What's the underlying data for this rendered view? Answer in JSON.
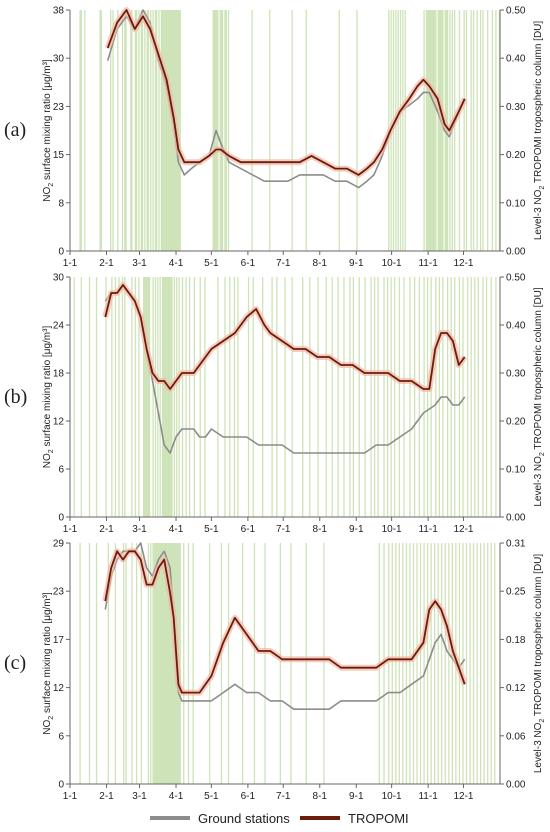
{
  "colors": {
    "ground": "#8c8c8c",
    "tropomi": "#6b1c0c",
    "tropomi_glow": "#f4b7a4",
    "rain_band": "#c9e0b0",
    "axis": "#666666"
  },
  "legend": {
    "ground_label": "Ground stations",
    "tropomi_label": "TROPOMI"
  },
  "chart_data": [
    {
      "type": "line",
      "panel_label": "(a)",
      "ylabel_left": "NO2 surface mixing ratio [μg/m³]",
      "ylabel_right": "Level-3 NO2 TROPOMI tropospheric column [DU]",
      "x_ticks": [
        "1-1",
        "2-1",
        "3-1",
        "4-1",
        "5-1",
        "6-1",
        "7-1",
        "8-1",
        "9-1",
        "10-1",
        "11-1",
        "12-1"
      ],
      "y_left_ticks": [
        "0",
        "8",
        "15",
        "23",
        "30",
        "38"
      ],
      "y_right_ticks": [
        "0.00",
        "0.10",
        "0.20",
        "0.30",
        "0.40",
        "0.50"
      ],
      "ylim_left": [
        0,
        38
      ],
      "xlim_days": [
        0,
        365
      ],
      "series": [
        {
          "name": "Ground stations",
          "x": [
            32,
            40,
            48,
            55,
            62,
            68,
            75,
            82,
            88,
            92,
            97,
            103,
            110,
            118,
            124,
            128,
            135,
            145,
            155,
            165,
            175,
            185,
            195,
            205,
            215,
            225,
            235,
            245,
            252,
            258,
            265,
            272,
            280,
            288,
            295,
            300,
            305,
            312,
            318,
            322,
            330,
            335
          ],
          "y": [
            30,
            35,
            37,
            35,
            38,
            36,
            30,
            26,
            20,
            14,
            12,
            13,
            14,
            15,
            19,
            17,
            14,
            13,
            12,
            11,
            11,
            11,
            12,
            12,
            12,
            11,
            11,
            10,
            11,
            12,
            15,
            19,
            22,
            23,
            24,
            25,
            25,
            22,
            19,
            18,
            22,
            24
          ]
        },
        {
          "name": "TROPOMI",
          "x": [
            32,
            40,
            48,
            55,
            62,
            68,
            75,
            82,
            88,
            92,
            97,
            103,
            110,
            118,
            124,
            128,
            135,
            145,
            155,
            165,
            175,
            185,
            195,
            205,
            215,
            225,
            235,
            245,
            252,
            258,
            265,
            272,
            280,
            288,
            295,
            300,
            305,
            312,
            318,
            322,
            330,
            335
          ],
          "y": [
            32,
            36,
            38,
            35,
            37,
            35,
            31,
            27,
            21,
            16,
            14,
            14,
            14,
            15,
            16,
            16,
            15,
            14,
            14,
            14,
            14,
            14,
            14,
            15,
            14,
            13,
            13,
            12,
            13,
            14,
            16,
            19,
            22,
            24,
            26,
            27,
            26,
            24,
            20,
            19,
            22,
            24
          ]
        }
      ],
      "rain_days": [
        8,
        9,
        12,
        25,
        26,
        34,
        36,
        40,
        44,
        46,
        47,
        51,
        52,
        55,
        56,
        58,
        60,
        61,
        63,
        65,
        66,
        68,
        70,
        72,
        73,
        75,
        77,
        78,
        79,
        80,
        81,
        82,
        83,
        84,
        85,
        86,
        87,
        88,
        89,
        90,
        91,
        92,
        93,
        121,
        122,
        123,
        124,
        125,
        127,
        128,
        129,
        131,
        132,
        134,
        154,
        169,
        188,
        200,
        228,
        243,
        270,
        272,
        274,
        276,
        278,
        280,
        282,
        284,
        300,
        302,
        303,
        304,
        305,
        306,
        307,
        308,
        309,
        310,
        312,
        313,
        314,
        315,
        316,
        318,
        319,
        320,
        322,
        324,
        326,
        330,
        334,
        336,
        340,
        342,
        345,
        348,
        350,
        354,
        358,
        361,
        364
      ]
    },
    {
      "type": "line",
      "panel_label": "(b)",
      "ylabel_left": "NO2 surface mixing ratio [μg/m³]",
      "ylabel_right": "Level-3 NO2 TROPOMI tropospheric column [DU]",
      "x_ticks": [
        "1-1",
        "2-1",
        "3-1",
        "4-1",
        "5-1",
        "6-1",
        "7-1",
        "8-1",
        "9-1",
        "10-1",
        "11-1",
        "12-1"
      ],
      "y_left_ticks": [
        "0",
        "6",
        "12",
        "18",
        "24",
        "30"
      ],
      "y_right_ticks": [
        "0.00",
        "0.10",
        "0.20",
        "0.30",
        "0.40",
        "0.50"
      ],
      "ylim_left": [
        0,
        30
      ],
      "xlim_days": [
        0,
        365
      ],
      "series": [
        {
          "name": "Ground stations",
          "x": [
            30,
            35,
            40,
            45,
            50,
            55,
            60,
            65,
            70,
            75,
            80,
            85,
            90,
            95,
            100,
            105,
            110,
            115,
            120,
            130,
            140,
            150,
            160,
            170,
            180,
            190,
            200,
            210,
            220,
            230,
            240,
            250,
            260,
            270,
            280,
            290,
            300,
            310,
            315,
            320,
            325,
            330,
            335
          ],
          "y": [
            27,
            28,
            28,
            29,
            28,
            27,
            25,
            21,
            17,
            13,
            9,
            8,
            10,
            11,
            11,
            11,
            10,
            10,
            11,
            10,
            10,
            10,
            9,
            9,
            9,
            8,
            8,
            8,
            8,
            8,
            8,
            8,
            9,
            9,
            10,
            11,
            13,
            14,
            15,
            15,
            14,
            14,
            15
          ]
        },
        {
          "name": "TROPOMI",
          "x": [
            30,
            35,
            40,
            45,
            50,
            55,
            60,
            65,
            70,
            75,
            80,
            85,
            90,
            95,
            100,
            105,
            110,
            115,
            120,
            130,
            140,
            150,
            158,
            165,
            170,
            180,
            190,
            200,
            210,
            220,
            230,
            240,
            250,
            260,
            270,
            280,
            290,
            300,
            305,
            310,
            315,
            320,
            325,
            330,
            335
          ],
          "y": [
            25,
            28,
            28,
            29,
            28,
            27,
            25,
            21,
            18,
            17,
            17,
            16,
            17,
            18,
            18,
            18,
            19,
            20,
            21,
            22,
            23,
            25,
            26,
            24,
            23,
            22,
            21,
            21,
            20,
            20,
            19,
            19,
            18,
            18,
            18,
            17,
            17,
            16,
            16,
            21,
            23,
            23,
            22,
            19,
            20
          ]
        }
      ],
      "rain_days": [
        3,
        9,
        16,
        22,
        30,
        35,
        38,
        41,
        44,
        46,
        52,
        55,
        58,
        62,
        63,
        64,
        65,
        66,
        67,
        70,
        72,
        74,
        76,
        78,
        79,
        80,
        81,
        82,
        83,
        84,
        85,
        86,
        88,
        90,
        92,
        95,
        98,
        101,
        105,
        110,
        114,
        125,
        131,
        135,
        139,
        142,
        151,
        155,
        163,
        171,
        175,
        182,
        188,
        197,
        203,
        210,
        217,
        222,
        227,
        232,
        237,
        240,
        245,
        250,
        255,
        258,
        261,
        266,
        269,
        272,
        275,
        279,
        283,
        288,
        292,
        296,
        300,
        303,
        306,
        310,
        313,
        316,
        320,
        323,
        326,
        330,
        333,
        337,
        340,
        343,
        346,
        350,
        353,
        357,
        361
      ]
    },
    {
      "type": "line",
      "panel_label": "(c)",
      "ylabel_left": "NO2 surface mixing ratio [μg/m³]",
      "ylabel_right": "Level-3 NO2 TROPOMI tropospheric column [DU]",
      "x_ticks": [
        "1-1",
        "2-1",
        "3-1",
        "4-1",
        "5-1",
        "6-1",
        "7-1",
        "8-1",
        "9-1",
        "10-1",
        "11-1",
        "12-1"
      ],
      "y_left_ticks": [
        "0",
        "6",
        "12",
        "17",
        "23",
        "29"
      ],
      "y_right_ticks": [
        "0.00",
        "0.06",
        "0.12",
        "0.18",
        "0.25",
        "0.31"
      ],
      "ylim_left": [
        0,
        29
      ],
      "xlim_days": [
        0,
        365
      ],
      "series": [
        {
          "name": "Ground stations",
          "x": [
            30,
            35,
            40,
            45,
            50,
            55,
            60,
            65,
            70,
            75,
            80,
            85,
            88,
            90,
            92,
            95,
            100,
            110,
            120,
            130,
            140,
            150,
            160,
            170,
            180,
            190,
            200,
            210,
            220,
            230,
            240,
            250,
            260,
            270,
            280,
            290,
            300,
            305,
            310,
            315,
            320,
            325,
            330,
            335
          ],
          "y": [
            21,
            25,
            27,
            28,
            28,
            28,
            29,
            26,
            25,
            27,
            28,
            26,
            20,
            15,
            11,
            10,
            10,
            10,
            10,
            11,
            12,
            11,
            11,
            10,
            10,
            9,
            9,
            9,
            9,
            10,
            10,
            10,
            10,
            11,
            11,
            12,
            13,
            15,
            17,
            18,
            16,
            15,
            14,
            15
          ]
        },
        {
          "name": "TROPOMI",
          "x": [
            30,
            35,
            40,
            45,
            50,
            55,
            60,
            65,
            70,
            75,
            80,
            85,
            88,
            90,
            92,
            95,
            100,
            110,
            120,
            130,
            140,
            150,
            160,
            170,
            180,
            190,
            200,
            210,
            220,
            230,
            240,
            250,
            260,
            270,
            280,
            290,
            300,
            305,
            310,
            315,
            320,
            325,
            330,
            335
          ],
          "y": [
            22,
            26,
            28,
            27,
            28,
            28,
            27,
            24,
            24,
            26,
            27,
            23,
            20,
            16,
            12,
            11,
            11,
            11,
            13,
            17,
            20,
            18,
            16,
            16,
            15,
            15,
            15,
            15,
            15,
            14,
            14,
            14,
            14,
            15,
            15,
            15,
            17,
            21,
            22,
            21,
            19,
            16,
            14,
            12
          ]
        }
      ],
      "rain_days": [
        8,
        16,
        22,
        32,
        38,
        45,
        47,
        52,
        56,
        60,
        66,
        68,
        70,
        71,
        72,
        73,
        74,
        75,
        76,
        77,
        78,
        79,
        80,
        81,
        82,
        83,
        84,
        85,
        86,
        87,
        88,
        89,
        90,
        91,
        92,
        93,
        96,
        100,
        104,
        118,
        128,
        134,
        146,
        156,
        165,
        178,
        187,
        200,
        215,
        262,
        266,
        270,
        273,
        276,
        279,
        282,
        285,
        288,
        291,
        294,
        297,
        300,
        303,
        306,
        309,
        312,
        315,
        318,
        321,
        324,
        327,
        330,
        333,
        336,
        339,
        342,
        345,
        348,
        351,
        354,
        357,
        360
      ]
    }
  ]
}
